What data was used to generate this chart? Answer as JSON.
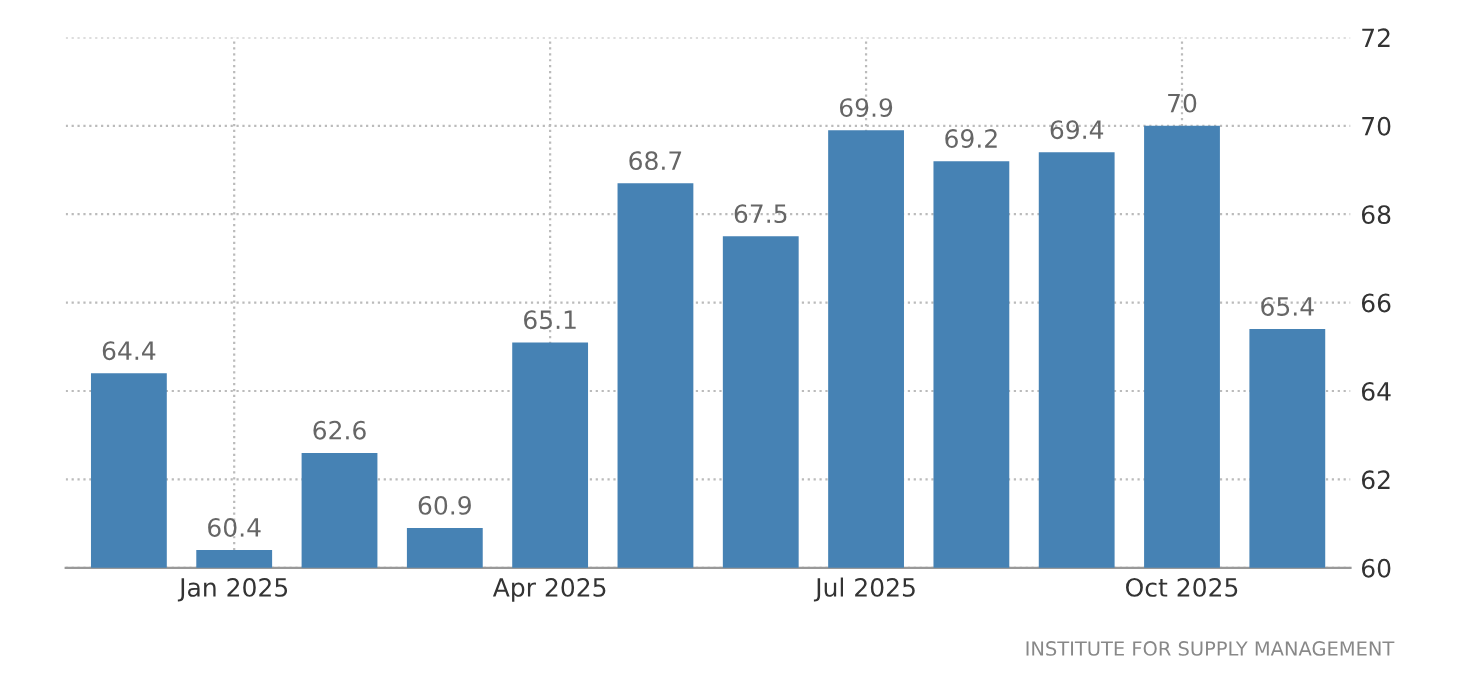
{
  "chart_data": {
    "type": "bar",
    "categories": [
      null,
      "Jan 2025",
      null,
      null,
      "Apr 2025",
      null,
      null,
      "Jul 2025",
      null,
      null,
      "Oct 2025",
      null
    ],
    "values": [
      64.4,
      60.4,
      62.6,
      60.9,
      65.1,
      68.7,
      67.5,
      69.9,
      69.2,
      69.4,
      70,
      65.4
    ],
    "color": "#4682b4",
    "ylim": [
      60,
      72
    ],
    "yticks": [
      60,
      62,
      64,
      66,
      68,
      70,
      72
    ],
    "grid": true,
    "data_labels": true,
    "annotations": [
      "INSTITUTE FOR SUPPLY MANAGEMENT"
    ]
  }
}
